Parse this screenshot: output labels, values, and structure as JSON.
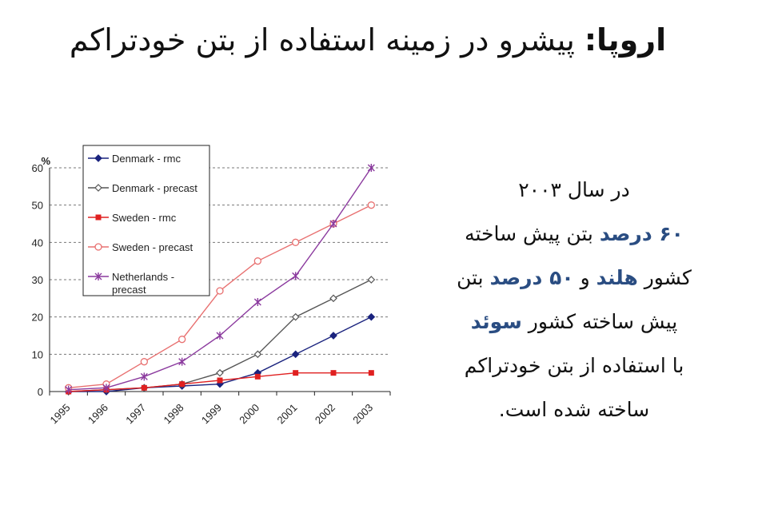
{
  "slide": {
    "title_bold": "اروپا:",
    "title_rest": " پیشرو در زمینه استفاده از بتن خودتراکم"
  },
  "text_block": {
    "line1": "در سال ۲۰۰۳",
    "line2_bold": "۶۰ درصد",
    "line2_rest": " بتن پیش ساخته",
    "line3_a": "کشور ",
    "line3_b_bold": "هلند",
    "line3_c": " و ",
    "line3_d_bold": "۵۰ درصد",
    "line3_e": " بتن",
    "line4_a": "پیش ساخته کشور ",
    "line4_b_bold": "سوئد",
    "line5": "با استفاده از بتن خودتراکم",
    "line6": "ساخته شده است."
  },
  "colors": {
    "accent": "#2a4d82",
    "denmark_rmc": "#1a237e",
    "denmark_precast": "#555555",
    "sweden_rmc": "#e02020",
    "sweden_precast": "#e87070",
    "netherlands_precast": "#8b3a9e"
  },
  "chart_data": {
    "type": "line",
    "ylabel": "%",
    "ylim": [
      0,
      60
    ],
    "yticks": [
      "0",
      "10",
      "20",
      "30",
      "40",
      "50",
      "60"
    ],
    "categories": [
      "1995",
      "1996",
      "1997",
      "1998",
      "1999",
      "2000",
      "2001",
      "2002",
      "2003"
    ],
    "grid": "horizontal dashed",
    "legend_position": "top-left",
    "series": [
      {
        "name": "Denmark - rmc",
        "marker": "diamond-filled",
        "values": [
          0,
          0,
          1,
          1.5,
          2,
          5,
          10,
          15,
          20
        ]
      },
      {
        "name": "Denmark - precast",
        "marker": "diamond-open",
        "values": [
          0,
          0.5,
          1,
          2,
          5,
          10,
          20,
          25,
          30
        ]
      },
      {
        "name": "Sweden - rmc",
        "marker": "square-filled",
        "values": [
          0,
          0.5,
          1,
          2,
          3,
          4,
          5,
          5,
          5
        ]
      },
      {
        "name": "Sweden - precast",
        "marker": "circle-open",
        "values": [
          1,
          2,
          8,
          14,
          27,
          35,
          40,
          45,
          50
        ]
      },
      {
        "name": "Netherlands - precast",
        "name_lines": [
          "Netherlands -",
          "precast"
        ],
        "marker": "star",
        "values": [
          0.5,
          1,
          4,
          8,
          15,
          24,
          31,
          45,
          60
        ]
      }
    ]
  }
}
